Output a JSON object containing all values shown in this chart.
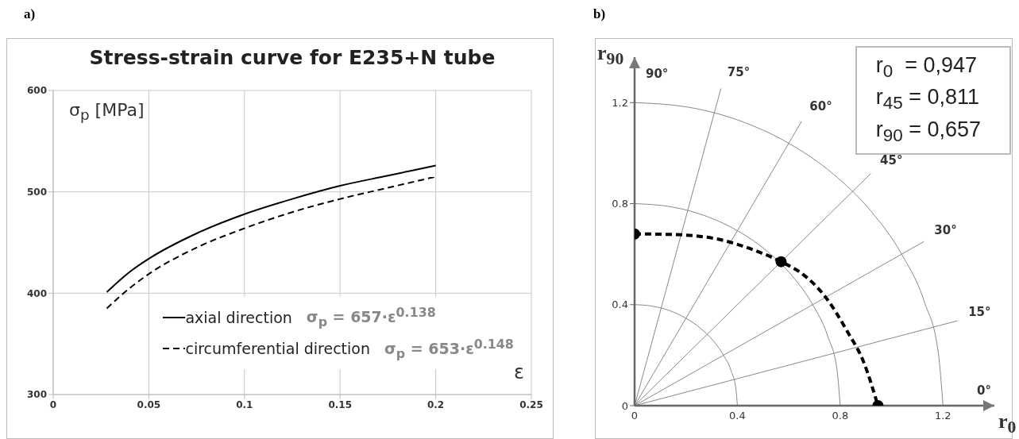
{
  "chart_data": [
    {
      "type": "line",
      "title": "Stress-strain curve for E235+N tube",
      "xlabel": "ε",
      "ylabel": "σ$_{p}$ [MPa]",
      "x": [
        0.028,
        0.04,
        0.05,
        0.075,
        0.1,
        0.125,
        0.15,
        0.175,
        0.2
      ],
      "series": [
        {
          "name": "axial direction",
          "color": "#000000",
          "line_style": "solid",
          "values": [
            401,
            421,
            434,
            459,
            478,
            493,
            506,
            516,
            526
          ]
        },
        {
          "name": "circumferential direction",
          "color": "#000000",
          "line_style": "dashed",
          "values": [
            385,
            405,
            419,
            445,
            464,
            480,
            493,
            504,
            515
          ]
        }
      ],
      "xlim": [
        0,
        0.25
      ],
      "xticks": [
        0,
        0.05,
        0.1,
        0.15,
        0.2,
        0.25
      ],
      "ylim": [
        300,
        600
      ],
      "yticks": [
        300,
        400,
        500,
        600
      ],
      "grid": true,
      "legend": "bottom",
      "marker": "none",
      "annotations": [
        "a)",
        "σ$_{p}$ = 657·ε$^{0.138}$",
        "σ$_{p}$ = 653·ε$^{0.148}$"
      ]
    },
    {
      "type": "line",
      "xlabel": "r$_{0}$",
      "ylabel": "r$_{90}$",
      "marker": "none",
      "series": [
        {
          "color": "#888888",
          "x": [
            0,
            0.069,
            0.137,
            0.2,
            0.257,
            0.306,
            0.346,
            0.376,
            0.394,
            0.4
          ],
          "values": [
            0.4,
            0.394,
            0.376,
            0.346,
            0.306,
            0.257,
            0.2,
            0.137,
            0.069,
            0
          ]
        },
        {
          "color": "#888888",
          "x": [
            0,
            0.139,
            0.274,
            0.4,
            0.514,
            0.613,
            0.693,
            0.752,
            0.788,
            0.8
          ],
          "values": [
            0.8,
            0.788,
            0.752,
            0.693,
            0.613,
            0.514,
            0.4,
            0.274,
            0.139,
            0
          ]
        },
        {
          "color": "#888888",
          "x": [
            0,
            0.208,
            0.41,
            0.6,
            0.771,
            0.919,
            1.039,
            1.128,
            1.182,
            1.2
          ],
          "values": [
            1.2,
            1.182,
            1.128,
            1.039,
            0.919,
            0.771,
            0.6,
            0.41,
            0.208,
            0
          ]
        },
        {
          "color": "#888888",
          "x": [
            0,
            0.336
          ],
          "values": [
            0,
            1.256
          ]
        },
        {
          "color": "#888888",
          "x": [
            0,
            0.65
          ],
          "values": [
            0,
            1.126
          ]
        },
        {
          "color": "#888888",
          "x": [
            0,
            0.919
          ],
          "values": [
            0,
            0.919
          ]
        },
        {
          "color": "#888888",
          "x": [
            0,
            1.126
          ],
          "values": [
            0,
            0.65
          ]
        },
        {
          "color": "#888888",
          "x": [
            0,
            1.256
          ],
          "values": [
            0,
            0.336
          ]
        },
        {
          "color": "#000000",
          "line_style": "dashed",
          "x": [
            0,
            0.143,
            0.32,
            0.47,
            0.57,
            0.65,
            0.74,
            0.83,
            0.89,
            0.947
          ],
          "values": [
            0.68,
            0.678,
            0.66,
            0.614,
            0.57,
            0.524,
            0.434,
            0.29,
            0.176,
            0
          ]
        },
        {
          "type": "scatter",
          "color": "#000000",
          "marker": "circle",
          "x": [
            0,
            0.57,
            0.947
          ],
          "values": [
            0.68,
            0.57,
            0
          ]
        }
      ],
      "xlim": [
        0,
        1.4
      ],
      "xticks": [
        0,
        0.4,
        0.8,
        1.2
      ],
      "ylim": [
        0,
        1.38
      ],
      "yticks": [
        0,
        0.4,
        0.8,
        1.2
      ],
      "annotations": [
        "b)",
        "90°",
        "0°",
        {
          "text": "75°",
          "x": 0.336,
          "y": 1.256
        },
        {
          "text": "60°",
          "x": 0.65,
          "y": 1.126
        },
        {
          "text": "45°",
          "x": 0.919,
          "y": 0.919
        },
        {
          "text": "30°",
          "x": 1.126,
          "y": 0.65
        },
        {
          "text": "15°",
          "x": 1.256,
          "y": 0.336
        },
        "r$_{0}$  = 0,947",
        "r$_{45}$ = 0,811",
        "r$_{90}$ = 0,657"
      ]
    }
  ]
}
